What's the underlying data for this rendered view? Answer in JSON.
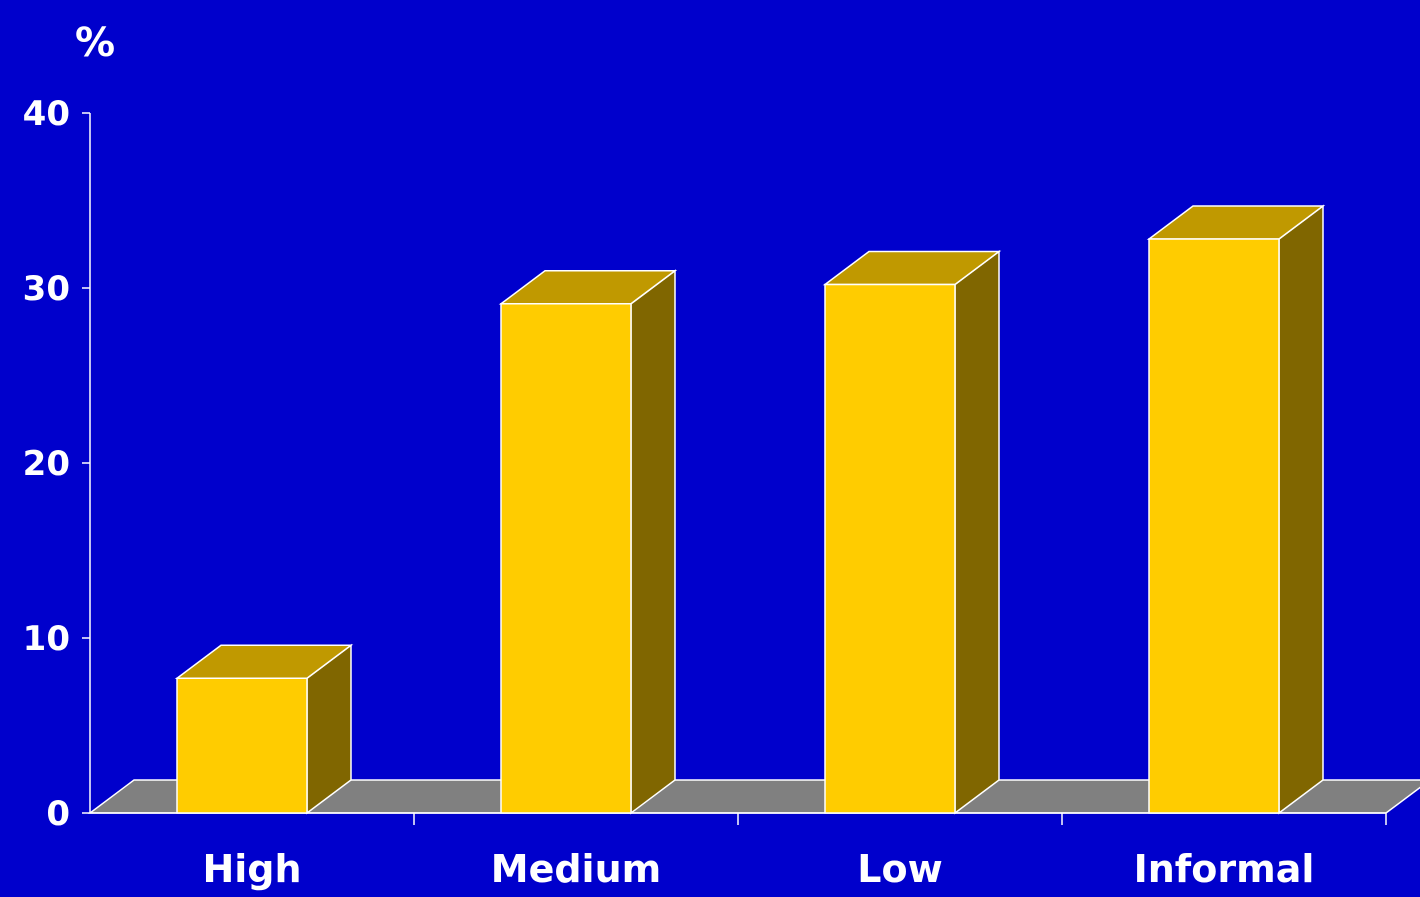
{
  "chart_data": {
    "type": "bar",
    "style": "3d-column",
    "title": "",
    "xlabel": "",
    "ylabel": "%",
    "categories": [
      "High",
      "Medium",
      "Low",
      "Informal"
    ],
    "values": [
      7.7,
      29.1,
      30.2,
      32.8
    ],
    "ylim": [
      0,
      40
    ],
    "yticks": [
      "0",
      "10",
      "20",
      "30",
      "40"
    ],
    "grid": false,
    "legend": "none"
  },
  "colors": {
    "background": "#0000CC",
    "bar_front": "#FFCC00",
    "bar_top": "#C09900",
    "bar_side": "#806600",
    "floor": "#808080",
    "axis": "#FFFFFF"
  }
}
